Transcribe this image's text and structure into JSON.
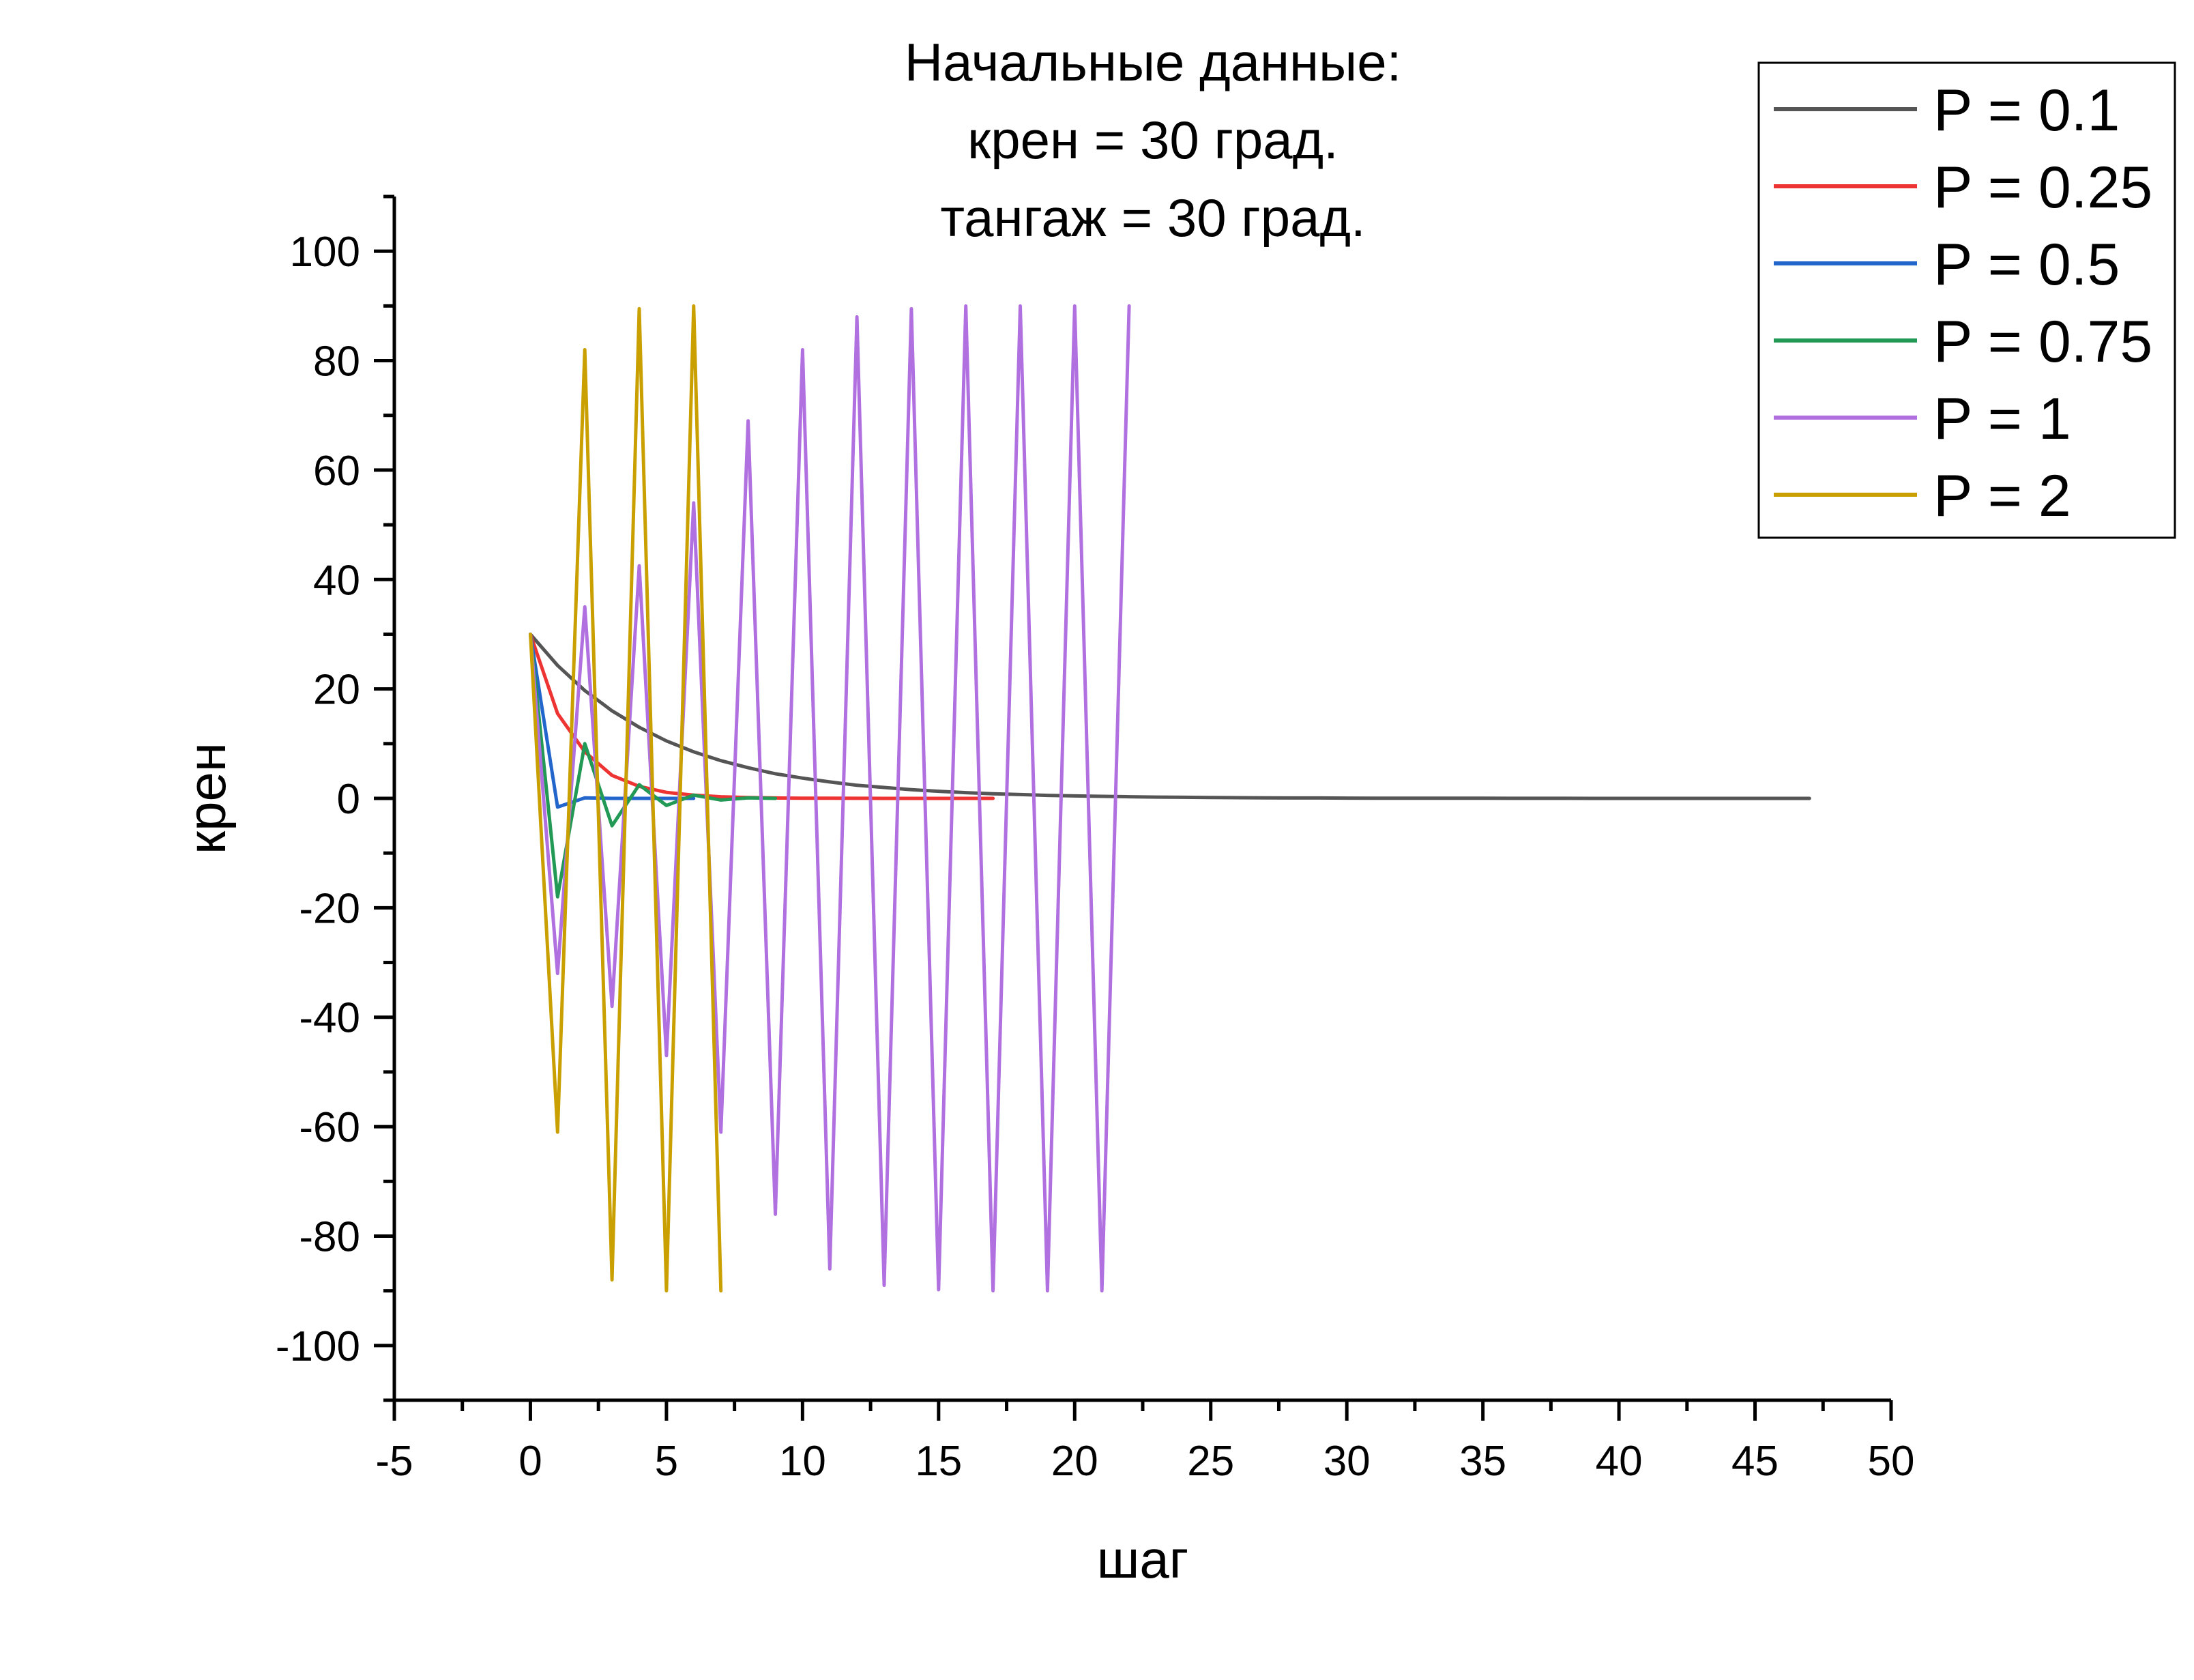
{
  "chart_data": {
    "type": "line",
    "title_lines": [
      "Начальные данные:",
      "крен = 30 град.",
      "тангаж = 30 град."
    ],
    "xlabel": "шаг",
    "ylabel": "крен",
    "xlim": [
      -5,
      50
    ],
    "ylim": [
      -110,
      110
    ],
    "xticks": [
      -5,
      0,
      5,
      10,
      15,
      20,
      25,
      30,
      35,
      40,
      45,
      50
    ],
    "yticks": [
      -100,
      -80,
      -60,
      -40,
      -20,
      0,
      20,
      40,
      60,
      80,
      100
    ],
    "grid": false,
    "legend_position": "top-right",
    "series": [
      {
        "name": "P = 0.1",
        "color": "#555555",
        "x": [
          0,
          1,
          2,
          3,
          4,
          5,
          6,
          7,
          8,
          9,
          10,
          11,
          12,
          13,
          14,
          15,
          16,
          17,
          18,
          19,
          20,
          21,
          22,
          23,
          24,
          25,
          26,
          27,
          28,
          29,
          30,
          31,
          32,
          33,
          34,
          35,
          36,
          37,
          38,
          39,
          40,
          41,
          42,
          43,
          44,
          45,
          46,
          47
        ],
        "y": [
          30,
          24.3,
          19.7,
          16,
          13,
          10.5,
          8.5,
          6.9,
          5.6,
          4.5,
          3.7,
          3,
          2.4,
          2,
          1.6,
          1.3,
          1.05,
          0.85,
          0.7,
          0.55,
          0.45,
          0.37,
          0.3,
          0.24,
          0.2,
          0.16,
          0.13,
          0.1,
          0.08,
          0.07,
          0.05,
          0.04,
          0.03,
          0.03,
          0.02,
          0.02,
          0.01,
          0.01,
          0.01,
          0,
          0,
          0,
          0,
          0,
          0,
          0,
          0,
          0
        ]
      },
      {
        "name": "P = 0.25",
        "color": "#ee3333",
        "x": [
          0,
          1,
          2,
          3,
          4,
          5,
          6,
          7,
          8,
          9,
          10,
          11,
          12,
          13,
          14,
          15,
          16,
          17
        ],
        "y": [
          30,
          15.5,
          8.5,
          4.2,
          2.2,
          1.1,
          0.6,
          0.3,
          0.15,
          0.08,
          0.04,
          0.02,
          0.01,
          0,
          0,
          0,
          0,
          0
        ]
      },
      {
        "name": "P = 0.5",
        "color": "#2266cc",
        "x": [
          0,
          1,
          2,
          3,
          4,
          5,
          6
        ],
        "y": [
          30,
          -1.6,
          0.1,
          0,
          0,
          0,
          0
        ]
      },
      {
        "name": "P = 0.75",
        "color": "#229955",
        "x": [
          0,
          1,
          2,
          3,
          4,
          5,
          6,
          7,
          8,
          9
        ],
        "y": [
          30,
          -18,
          10,
          -5,
          2.5,
          -1.3,
          0.6,
          -0.3,
          0.1,
          0
        ]
      },
      {
        "name": "P = 1",
        "color": "#b070e0",
        "x": [
          0,
          1,
          2,
          3,
          4,
          5,
          6,
          7,
          8,
          9,
          10,
          11,
          12,
          13,
          14,
          15,
          16,
          17,
          18,
          19,
          20,
          21,
          22
        ],
        "y": [
          30,
          -32,
          35,
          -38,
          42.5,
          -47,
          54,
          -61,
          69,
          -76,
          82,
          -86,
          88,
          -89,
          89.5,
          -89.8,
          90,
          -90,
          90,
          -90,
          90,
          -90,
          90
        ]
      },
      {
        "name": "P = 2",
        "color": "#c9a000",
        "x": [
          0,
          1,
          2,
          3,
          4,
          5,
          6,
          7
        ],
        "y": [
          30,
          -61,
          82,
          -88,
          89.5,
          -90,
          90,
          -90
        ]
      }
    ]
  }
}
